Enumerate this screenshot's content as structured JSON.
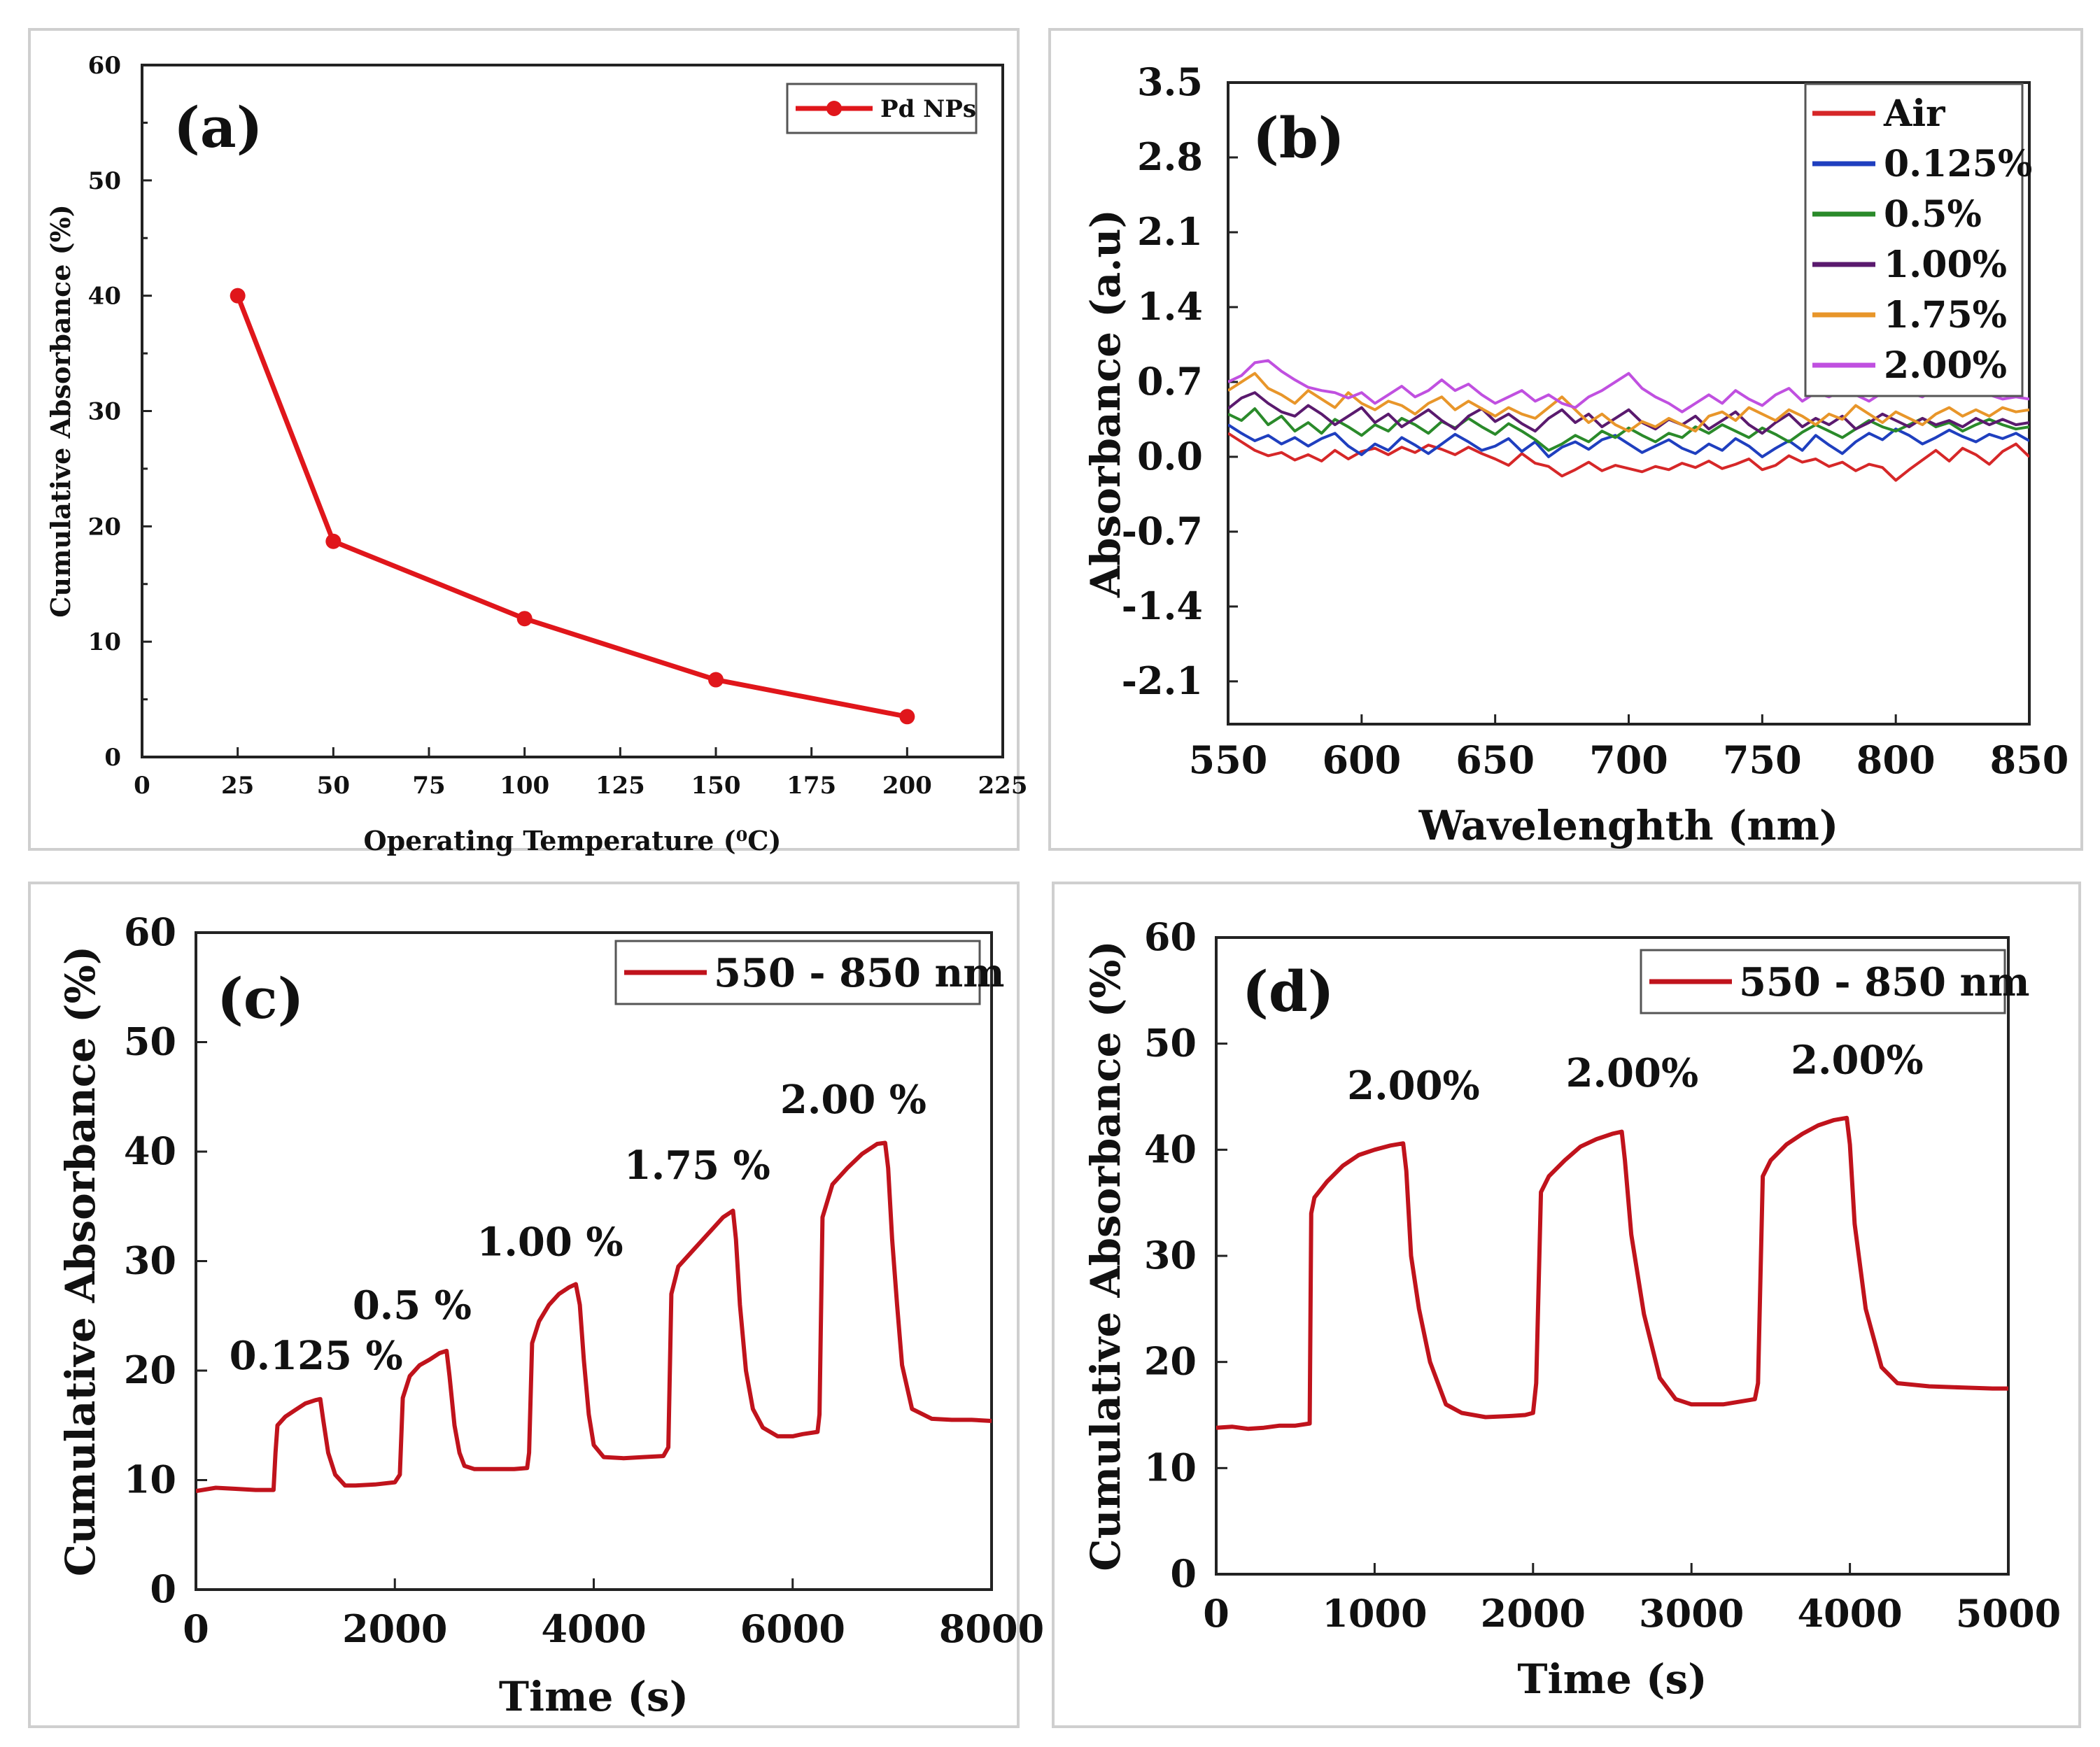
{
  "chart_data": [
    {
      "panel": "a",
      "type": "line",
      "panel_label": "(a)",
      "xlabel": "Operating Temperature (⁰C)",
      "ylabel": "Cumulative Absorbance (%)",
      "xlim": [
        0,
        225
      ],
      "ylim": [
        0,
        60
      ],
      "xticks": [
        0,
        25,
        50,
        75,
        100,
        125,
        150,
        175,
        200,
        225
      ],
      "yticks": [
        0,
        10,
        20,
        30,
        40,
        50,
        60
      ],
      "legend": "top-right",
      "series": [
        {
          "name": "Pd NPs",
          "color": "#e0161b",
          "marker": true,
          "x": [
            25,
            50,
            100,
            150,
            200
          ],
          "y": [
            40,
            18.7,
            12,
            6.7,
            3.5
          ]
        }
      ]
    },
    {
      "panel": "b",
      "type": "line",
      "panel_label": "(b)",
      "xlabel": "Wavelenghth (nm)",
      "ylabel": "Absorbance (a.u)",
      "xlim": [
        550,
        850
      ],
      "ylim": [
        -2.5,
        3.5
      ],
      "xticks": [
        550,
        600,
        650,
        700,
        750,
        800,
        850
      ],
      "yticks": [
        -2.1,
        -1.4,
        -0.7,
        0.0,
        0.7,
        1.4,
        2.1,
        2.8,
        3.5
      ],
      "legend": "top-right",
      "x": [
        550,
        555,
        560,
        565,
        570,
        575,
        580,
        585,
        590,
        595,
        600,
        605,
        610,
        615,
        620,
        625,
        630,
        635,
        640,
        645,
        650,
        655,
        660,
        665,
        670,
        675,
        680,
        685,
        690,
        695,
        700,
        705,
        710,
        715,
        720,
        725,
        730,
        735,
        740,
        745,
        750,
        755,
        760,
        765,
        770,
        775,
        780,
        785,
        790,
        795,
        800,
        805,
        810,
        815,
        820,
        825,
        830,
        835,
        840,
        845,
        850
      ],
      "series": [
        {
          "name": "Air",
          "color": "#d62728",
          "values": [
            0.22,
            0.14,
            0.06,
            0.01,
            0.04,
            -0.03,
            0.02,
            -0.04,
            0.06,
            -0.02,
            0.05,
            0.08,
            0.02,
            0.09,
            0.04,
            0.11,
            0.07,
            0.02,
            0.09,
            0.03,
            -0.02,
            -0.08,
            0.03,
            -0.06,
            -0.09,
            -0.18,
            -0.12,
            -0.05,
            -0.13,
            -0.08,
            -0.11,
            -0.14,
            -0.09,
            -0.12,
            -0.06,
            -0.1,
            -0.04,
            -0.11,
            -0.07,
            -0.02,
            -0.12,
            -0.08,
            0.01,
            -0.05,
            -0.02,
            -0.09,
            -0.05,
            -0.13,
            -0.07,
            -0.1,
            -0.22,
            -0.12,
            -0.03,
            0.06,
            -0.04,
            0.08,
            0.02,
            -0.07,
            0.05,
            0.12,
            0.0
          ]
        },
        {
          "name": "0.125%",
          "color": "#1f3fbf",
          "values": [
            0.3,
            0.22,
            0.15,
            0.2,
            0.12,
            0.18,
            0.1,
            0.17,
            0.22,
            0.1,
            0.02,
            0.12,
            0.06,
            0.18,
            0.11,
            0.03,
            0.12,
            0.21,
            0.14,
            0.06,
            0.1,
            0.17,
            0.05,
            0.14,
            0.0,
            0.09,
            0.14,
            0.07,
            0.16,
            0.2,
            0.12,
            0.04,
            0.1,
            0.16,
            0.08,
            0.03,
            0.12,
            0.06,
            0.17,
            0.1,
            0.0,
            0.08,
            0.15,
            0.06,
            0.2,
            0.11,
            0.03,
            0.14,
            0.22,
            0.16,
            0.26,
            0.2,
            0.12,
            0.18,
            0.25,
            0.19,
            0.14,
            0.21,
            0.17,
            0.22,
            0.15
          ]
        },
        {
          "name": "0.5%",
          "color": "#2a8a2a",
          "values": [
            0.4,
            0.34,
            0.45,
            0.3,
            0.38,
            0.24,
            0.32,
            0.22,
            0.35,
            0.28,
            0.2,
            0.3,
            0.24,
            0.36,
            0.3,
            0.22,
            0.33,
            0.27,
            0.36,
            0.28,
            0.21,
            0.31,
            0.24,
            0.16,
            0.06,
            0.12,
            0.2,
            0.14,
            0.24,
            0.18,
            0.27,
            0.2,
            0.14,
            0.22,
            0.18,
            0.28,
            0.22,
            0.3,
            0.24,
            0.18,
            0.27,
            0.21,
            0.14,
            0.23,
            0.3,
            0.24,
            0.18,
            0.26,
            0.34,
            0.28,
            0.24,
            0.3,
            0.36,
            0.28,
            0.32,
            0.24,
            0.3,
            0.35,
            0.3,
            0.26,
            0.28
          ]
        },
        {
          "name": "1.00%",
          "color": "#5a1a6e",
          "values": [
            0.45,
            0.55,
            0.6,
            0.5,
            0.42,
            0.38,
            0.48,
            0.4,
            0.3,
            0.38,
            0.46,
            0.32,
            0.4,
            0.28,
            0.36,
            0.44,
            0.34,
            0.26,
            0.38,
            0.45,
            0.33,
            0.4,
            0.31,
            0.24,
            0.36,
            0.44,
            0.32,
            0.4,
            0.28,
            0.36,
            0.44,
            0.32,
            0.26,
            0.35,
            0.3,
            0.38,
            0.26,
            0.34,
            0.42,
            0.3,
            0.22,
            0.32,
            0.4,
            0.28,
            0.36,
            0.3,
            0.38,
            0.26,
            0.32,
            0.4,
            0.34,
            0.28,
            0.36,
            0.3,
            0.34,
            0.28,
            0.36,
            0.3,
            0.35,
            0.3,
            0.32
          ]
        },
        {
          "name": "1.75%",
          "color": "#e8962a",
          "values": [
            0.62,
            0.7,
            0.78,
            0.64,
            0.58,
            0.5,
            0.62,
            0.54,
            0.46,
            0.6,
            0.5,
            0.44,
            0.52,
            0.48,
            0.4,
            0.5,
            0.56,
            0.44,
            0.52,
            0.45,
            0.38,
            0.46,
            0.4,
            0.36,
            0.46,
            0.56,
            0.44,
            0.32,
            0.4,
            0.3,
            0.24,
            0.33,
            0.28,
            0.36,
            0.3,
            0.24,
            0.38,
            0.42,
            0.34,
            0.46,
            0.4,
            0.34,
            0.44,
            0.38,
            0.3,
            0.4,
            0.35,
            0.48,
            0.4,
            0.32,
            0.42,
            0.36,
            0.3,
            0.4,
            0.46,
            0.38,
            0.44,
            0.38,
            0.46,
            0.42,
            0.44
          ]
        },
        {
          "name": "2.00%",
          "color": "#c050e0",
          "values": [
            0.7,
            0.76,
            0.88,
            0.9,
            0.8,
            0.72,
            0.65,
            0.62,
            0.6,
            0.55,
            0.6,
            0.5,
            0.58,
            0.66,
            0.56,
            0.62,
            0.72,
            0.62,
            0.68,
            0.58,
            0.5,
            0.56,
            0.62,
            0.52,
            0.58,
            0.5,
            0.46,
            0.56,
            0.62,
            0.7,
            0.78,
            0.64,
            0.56,
            0.5,
            0.42,
            0.5,
            0.58,
            0.5,
            0.62,
            0.54,
            0.48,
            0.58,
            0.64,
            0.52,
            0.6,
            0.56,
            0.62,
            0.58,
            0.52,
            0.6,
            0.66,
            0.6,
            0.56,
            0.64,
            0.6,
            0.58,
            0.64,
            0.58,
            0.54,
            0.56,
            0.54
          ]
        }
      ]
    },
    {
      "panel": "c",
      "type": "line",
      "panel_label": "(c)",
      "xlabel": "Time (s)",
      "ylabel": "Cumulative Absorbance (%)",
      "xlim": [
        0,
        8000
      ],
      "ylim": [
        0,
        60
      ],
      "xticks": [
        0,
        2000,
        4000,
        6000,
        8000
      ],
      "yticks": [
        0,
        10,
        20,
        30,
        40,
        50,
        60
      ],
      "legend": "top-right",
      "series": [
        {
          "name": "550 - 850 nm",
          "color": "#c0131c",
          "x": [
            0,
            200,
            400,
            600,
            780,
            800,
            820,
            900,
            1000,
            1100,
            1200,
            1250,
            1280,
            1330,
            1400,
            1500,
            1600,
            1800,
            2000,
            2050,
            2080,
            2150,
            2250,
            2350,
            2450,
            2520,
            2550,
            2600,
            2650,
            2700,
            2800,
            3000,
            3200,
            3330,
            3350,
            3380,
            3450,
            3550,
            3650,
            3750,
            3820,
            3860,
            3900,
            3950,
            4000,
            4100,
            4300,
            4500,
            4700,
            4750,
            4780,
            4850,
            5000,
            5150,
            5300,
            5400,
            5430,
            5470,
            5530,
            5600,
            5700,
            5850,
            6000,
            6100,
            6250,
            6270,
            6300,
            6400,
            6550,
            6700,
            6850,
            6930,
            6960,
            7000,
            7050,
            7100,
            7200,
            7400,
            7600,
            7800,
            8000
          ],
          "y": [
            9,
            9.3,
            9.2,
            9.1,
            9.1,
            12.5,
            15,
            15.8,
            16.4,
            17,
            17.3,
            17.4,
            15.5,
            12.5,
            10.5,
            9.5,
            9.5,
            9.6,
            9.8,
            10.5,
            17.5,
            19.5,
            20.5,
            21,
            21.6,
            21.8,
            19.5,
            15,
            12.5,
            11.3,
            11,
            11,
            11,
            11.1,
            12.5,
            22.5,
            24.5,
            26,
            27,
            27.6,
            27.9,
            26,
            21,
            16,
            13.2,
            12.1,
            12,
            12.1,
            12.2,
            13,
            27,
            29.5,
            31,
            32.5,
            34,
            34.6,
            32,
            26,
            20,
            16.5,
            14.8,
            14,
            14,
            14.2,
            14.4,
            16,
            34,
            37,
            38.5,
            39.8,
            40.7,
            40.8,
            38.5,
            32,
            26,
            20.5,
            16.5,
            15.6,
            15.5,
            15.5,
            15.4
          ]
        }
      ],
      "annotations": [
        "0.125 %",
        "0.5 %",
        "1.00 %",
        "1.75 %",
        "2.00 %"
      ]
    },
    {
      "panel": "d",
      "type": "line",
      "panel_label": "(d)",
      "xlabel": "Time (s)",
      "ylabel": "Cumulative Absorbance (%)",
      "xlim": [
        0,
        5000
      ],
      "ylim": [
        0,
        60
      ],
      "xticks": [
        0,
        1000,
        2000,
        3000,
        4000,
        5000
      ],
      "yticks": [
        0,
        10,
        20,
        30,
        40,
        50,
        60
      ],
      "legend": "top-right",
      "series": [
        {
          "name": "550 - 850 nm",
          "color": "#c0131c",
          "x": [
            0,
            100,
            200,
            300,
            400,
            500,
            590,
            600,
            620,
            700,
            800,
            900,
            1000,
            1100,
            1180,
            1200,
            1230,
            1280,
            1350,
            1450,
            1550,
            1700,
            1850,
            1950,
            2000,
            2020,
            2050,
            2100,
            2200,
            2300,
            2400,
            2500,
            2560,
            2580,
            2620,
            2700,
            2800,
            2900,
            3000,
            3200,
            3400,
            3420,
            3450,
            3500,
            3600,
            3700,
            3800,
            3900,
            3980,
            4000,
            4030,
            4100,
            4200,
            4300,
            4500,
            4700,
            4900,
            5000
          ],
          "y": [
            13.8,
            13.9,
            13.7,
            13.8,
            14,
            14,
            14.2,
            34,
            35.5,
            37,
            38.5,
            39.5,
            40,
            40.4,
            40.6,
            38,
            30,
            25,
            20,
            16,
            15.2,
            14.8,
            14.9,
            15,
            15.2,
            18,
            36,
            37.5,
            39,
            40.3,
            41,
            41.5,
            41.7,
            39,
            32,
            24.5,
            18.5,
            16.5,
            16,
            16,
            16.5,
            18,
            37.5,
            39,
            40.5,
            41.5,
            42.3,
            42.8,
            43,
            40.5,
            33,
            25,
            19.5,
            18,
            17.7,
            17.6,
            17.5,
            17.5
          ]
        }
      ],
      "annotations": [
        "2.00%",
        "2.00%",
        "2.00%"
      ]
    }
  ]
}
